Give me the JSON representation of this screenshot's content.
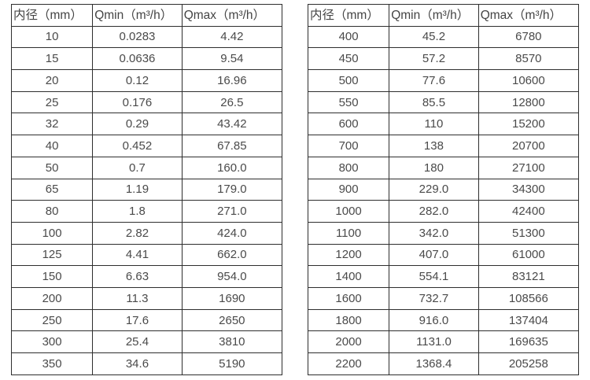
{
  "tables": [
    {
      "name": "small-diameter-spec",
      "headers": [
        "内径（mm）",
        "Qmin（m³/h）",
        "Qmax（m³/h）"
      ],
      "rows": [
        [
          "10",
          "0.0283",
          "4.42"
        ],
        [
          "15",
          "0.0636",
          "9.54"
        ],
        [
          "20",
          "0.12",
          "16.96"
        ],
        [
          "25",
          "0.176",
          "26.5"
        ],
        [
          "32",
          "0.29",
          "43.42"
        ],
        [
          "40",
          "0.452",
          "67.85"
        ],
        [
          "50",
          "0.7",
          "160.0"
        ],
        [
          "65",
          "1.19",
          "179.0"
        ],
        [
          "80",
          "1.8",
          "271.0"
        ],
        [
          "100",
          "2.82",
          "424.0"
        ],
        [
          "125",
          "4.41",
          "662.0"
        ],
        [
          "150",
          "6.63",
          "954.0"
        ],
        [
          "200",
          "11.3",
          "1690"
        ],
        [
          "250",
          "17.6",
          "2650"
        ],
        [
          "300",
          "25.4",
          "3810"
        ],
        [
          "350",
          "34.6",
          "5190"
        ]
      ]
    },
    {
      "name": "large-diameter-spec",
      "headers": [
        "内径（mm）",
        "Qmin（m³/h）",
        "Qmax（m³/h）"
      ],
      "rows": [
        [
          "400",
          "45.2",
          "6780"
        ],
        [
          "450",
          "57.2",
          "8570"
        ],
        [
          "500",
          "77.6",
          "10600"
        ],
        [
          "550",
          "85.5",
          "12800"
        ],
        [
          "600",
          "110",
          "15200"
        ],
        [
          "700",
          "138",
          "20700"
        ],
        [
          "800",
          "180",
          "27100"
        ],
        [
          "900",
          "229.0",
          "34300"
        ],
        [
          "1000",
          "282.0",
          "42400"
        ],
        [
          "1100",
          "342.0",
          "51300"
        ],
        [
          "1200",
          "407.0",
          "61000"
        ],
        [
          "1400",
          "554.1",
          "83121"
        ],
        [
          "1600",
          "732.7",
          "108566"
        ],
        [
          "1800",
          "916.0",
          "137404"
        ],
        [
          "2000",
          "1131.0",
          "169635"
        ],
        [
          "2200",
          "1368.4",
          "205258"
        ]
      ]
    }
  ],
  "colors": {
    "border": "#2e2e2e",
    "text": "#4a4a4a",
    "background": "#ffffff"
  }
}
